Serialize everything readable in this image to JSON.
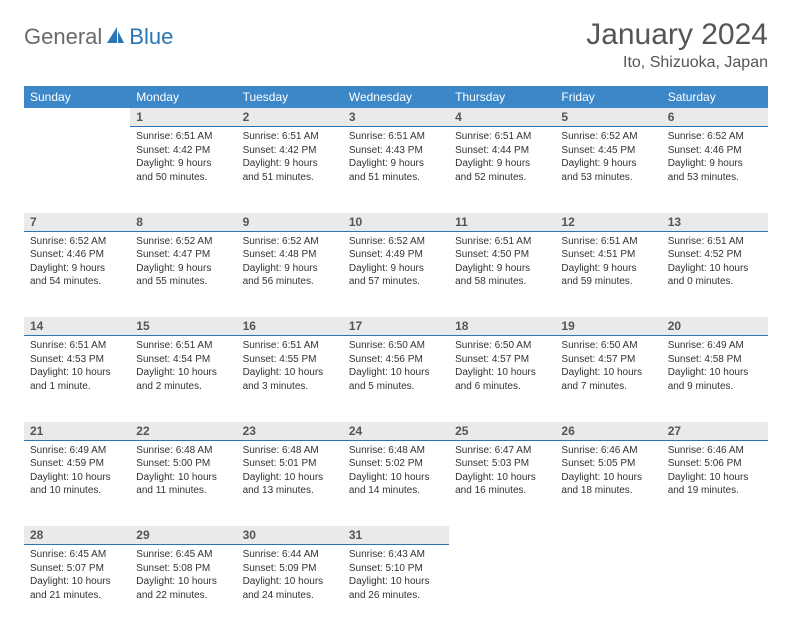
{
  "logo": {
    "part1": "General",
    "part2": "Blue"
  },
  "title": "January 2024",
  "location": "Ito, Shizuoka, Japan",
  "colors": {
    "header_bg": "#3b87c8",
    "daynum_bg": "#eaeaea",
    "daynum_border": "#2a75b3",
    "text": "#333333",
    "title_text": "#555555"
  },
  "day_headers": [
    "Sunday",
    "Monday",
    "Tuesday",
    "Wednesday",
    "Thursday",
    "Friday",
    "Saturday"
  ],
  "weeks": [
    [
      null,
      {
        "n": "1",
        "sr": "6:51 AM",
        "ss": "4:42 PM",
        "dl": "9 hours and 50 minutes."
      },
      {
        "n": "2",
        "sr": "6:51 AM",
        "ss": "4:42 PM",
        "dl": "9 hours and 51 minutes."
      },
      {
        "n": "3",
        "sr": "6:51 AM",
        "ss": "4:43 PM",
        "dl": "9 hours and 51 minutes."
      },
      {
        "n": "4",
        "sr": "6:51 AM",
        "ss": "4:44 PM",
        "dl": "9 hours and 52 minutes."
      },
      {
        "n": "5",
        "sr": "6:52 AM",
        "ss": "4:45 PM",
        "dl": "9 hours and 53 minutes."
      },
      {
        "n": "6",
        "sr": "6:52 AM",
        "ss": "4:46 PM",
        "dl": "9 hours and 53 minutes."
      }
    ],
    [
      {
        "n": "7",
        "sr": "6:52 AM",
        "ss": "4:46 PM",
        "dl": "9 hours and 54 minutes."
      },
      {
        "n": "8",
        "sr": "6:52 AM",
        "ss": "4:47 PM",
        "dl": "9 hours and 55 minutes."
      },
      {
        "n": "9",
        "sr": "6:52 AM",
        "ss": "4:48 PM",
        "dl": "9 hours and 56 minutes."
      },
      {
        "n": "10",
        "sr": "6:52 AM",
        "ss": "4:49 PM",
        "dl": "9 hours and 57 minutes."
      },
      {
        "n": "11",
        "sr": "6:51 AM",
        "ss": "4:50 PM",
        "dl": "9 hours and 58 minutes."
      },
      {
        "n": "12",
        "sr": "6:51 AM",
        "ss": "4:51 PM",
        "dl": "9 hours and 59 minutes."
      },
      {
        "n": "13",
        "sr": "6:51 AM",
        "ss": "4:52 PM",
        "dl": "10 hours and 0 minutes."
      }
    ],
    [
      {
        "n": "14",
        "sr": "6:51 AM",
        "ss": "4:53 PM",
        "dl": "10 hours and 1 minute."
      },
      {
        "n": "15",
        "sr": "6:51 AM",
        "ss": "4:54 PM",
        "dl": "10 hours and 2 minutes."
      },
      {
        "n": "16",
        "sr": "6:51 AM",
        "ss": "4:55 PM",
        "dl": "10 hours and 3 minutes."
      },
      {
        "n": "17",
        "sr": "6:50 AM",
        "ss": "4:56 PM",
        "dl": "10 hours and 5 minutes."
      },
      {
        "n": "18",
        "sr": "6:50 AM",
        "ss": "4:57 PM",
        "dl": "10 hours and 6 minutes."
      },
      {
        "n": "19",
        "sr": "6:50 AM",
        "ss": "4:57 PM",
        "dl": "10 hours and 7 minutes."
      },
      {
        "n": "20",
        "sr": "6:49 AM",
        "ss": "4:58 PM",
        "dl": "10 hours and 9 minutes."
      }
    ],
    [
      {
        "n": "21",
        "sr": "6:49 AM",
        "ss": "4:59 PM",
        "dl": "10 hours and 10 minutes."
      },
      {
        "n": "22",
        "sr": "6:48 AM",
        "ss": "5:00 PM",
        "dl": "10 hours and 11 minutes."
      },
      {
        "n": "23",
        "sr": "6:48 AM",
        "ss": "5:01 PM",
        "dl": "10 hours and 13 minutes."
      },
      {
        "n": "24",
        "sr": "6:48 AM",
        "ss": "5:02 PM",
        "dl": "10 hours and 14 minutes."
      },
      {
        "n": "25",
        "sr": "6:47 AM",
        "ss": "5:03 PM",
        "dl": "10 hours and 16 minutes."
      },
      {
        "n": "26",
        "sr": "6:46 AM",
        "ss": "5:05 PM",
        "dl": "10 hours and 18 minutes."
      },
      {
        "n": "27",
        "sr": "6:46 AM",
        "ss": "5:06 PM",
        "dl": "10 hours and 19 minutes."
      }
    ],
    [
      {
        "n": "28",
        "sr": "6:45 AM",
        "ss": "5:07 PM",
        "dl": "10 hours and 21 minutes."
      },
      {
        "n": "29",
        "sr": "6:45 AM",
        "ss": "5:08 PM",
        "dl": "10 hours and 22 minutes."
      },
      {
        "n": "30",
        "sr": "6:44 AM",
        "ss": "5:09 PM",
        "dl": "10 hours and 24 minutes."
      },
      {
        "n": "31",
        "sr": "6:43 AM",
        "ss": "5:10 PM",
        "dl": "10 hours and 26 minutes."
      },
      null,
      null,
      null
    ]
  ],
  "labels": {
    "sunrise": "Sunrise: ",
    "sunset": "Sunset: ",
    "daylight": "Daylight: "
  }
}
